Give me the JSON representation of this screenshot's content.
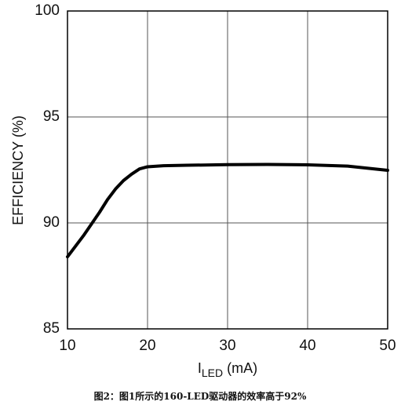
{
  "chart_data": {
    "type": "line",
    "y_label": "EFFICIENCY (%)",
    "x_label_parts": [
      "I",
      "LED",
      " (mA)"
    ],
    "caption": "图2：图1所示的160-LED驱动器的效率高于92%",
    "x": [
      10,
      12,
      14,
      15,
      16,
      17,
      18,
      19,
      20,
      22,
      25,
      30,
      35,
      40,
      45,
      50
    ],
    "series": [
      {
        "color": "#000000",
        "values": [
          88.4,
          89.4,
          90.5,
          91.1,
          91.6,
          92.0,
          92.3,
          92.55,
          92.65,
          92.7,
          92.72,
          92.75,
          92.76,
          92.74,
          92.68,
          92.48
        ]
      }
    ],
    "xlim": [
      10,
      50
    ],
    "xticks": [
      10,
      20,
      30,
      40,
      50
    ],
    "ylim": [
      85,
      100
    ],
    "yticks": [
      85,
      90,
      95,
      100
    ],
    "grid": true
  }
}
